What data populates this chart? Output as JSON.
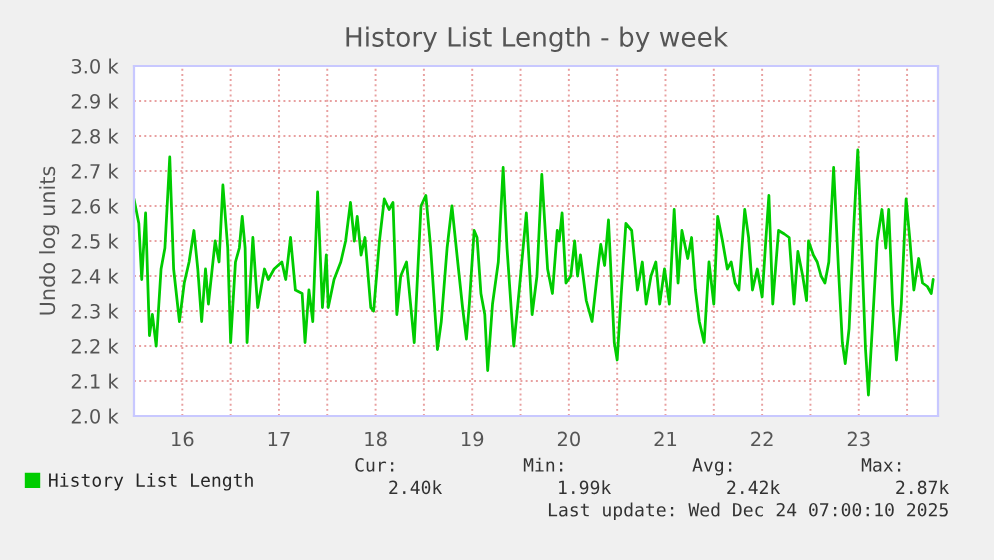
{
  "chart_data": {
    "type": "line",
    "title": "History List Length - by week",
    "ylabel": "Undo log units",
    "x": [
      16.0,
      16.05,
      16.08,
      16.12,
      16.16,
      16.19,
      16.23,
      16.28,
      16.32,
      16.37,
      16.41,
      16.47,
      16.52,
      16.57,
      16.62,
      16.66,
      16.7,
      16.74,
      16.77,
      16.84,
      16.88,
      16.92,
      16.97,
      17.0,
      17.05,
      17.09,
      17.12,
      17.15,
      17.17,
      17.23,
      17.28,
      17.35,
      17.39,
      17.45,
      17.53,
      17.57,
      17.62,
      17.67,
      17.74,
      17.77,
      17.81,
      17.85,
      17.9,
      17.95,
      17.99,
      18.01,
      18.07,
      18.14,
      18.19,
      18.24,
      18.28,
      18.31,
      18.35,
      18.39,
      18.45,
      18.48,
      18.54,
      18.59,
      18.64,
      18.68,
      18.72,
      18.76,
      18.82,
      18.9,
      18.97,
      19.02,
      19.07,
      19.14,
      19.18,
      19.24,
      19.29,
      19.35,
      19.4,
      19.44,
      19.47,
      19.52,
      19.55,
      19.59,
      19.63,
      19.66,
      19.71,
      19.77,
      19.82,
      19.86,
      19.93,
      19.99,
      20.06,
      20.12,
      20.17,
      20.22,
      20.28,
      20.33,
      20.38,
      20.4,
      20.43,
      20.47,
      20.52,
      20.56,
      20.59,
      20.62,
      20.68,
      20.74,
      20.8,
      20.83,
      20.87,
      20.91,
      20.97,
      21.0,
      21.04,
      21.09,
      21.15,
      21.21,
      21.26,
      21.3,
      21.35,
      21.4,
      21.44,
      21.49,
      21.54,
      21.59,
      21.63,
      21.67,
      21.73,
      21.77,
      21.81,
      21.85,
      21.9,
      21.95,
      22.0,
      22.04,
      22.09,
      22.14,
      22.18,
      22.22,
      22.26,
      22.32,
      22.36,
      22.4,
      22.45,
      22.5,
      22.54,
      22.57,
      22.61,
      22.67,
      22.73,
      22.78,
      22.83,
      22.87,
      22.92,
      22.96,
      22.98,
      23.03,
      23.07,
      23.11,
      23.15,
      23.19,
      23.24,
      23.29,
      23.33,
      23.36,
      23.4,
      23.45,
      23.49,
      23.53,
      23.57,
      23.6,
      23.64,
      23.69,
      23.74,
      23.78,
      23.81,
      23.85,
      23.89,
      23.94,
      23.99,
      24.03,
      24.07,
      24.12,
      24.16,
      24.21,
      24.25,
      24.27
    ],
    "series": [
      {
        "name": "History List Length",
        "color": "#00cc00",
        "values": [
          2620,
          2550,
          2390,
          2580,
          2230,
          2290,
          2200,
          2420,
          2480,
          2740,
          2420,
          2270,
          2380,
          2440,
          2530,
          2420,
          2270,
          2420,
          2320,
          2500,
          2440,
          2660,
          2480,
          2210,
          2440,
          2480,
          2570,
          2480,
          2210,
          2510,
          2310,
          2420,
          2390,
          2420,
          2440,
          2390,
          2510,
          2360,
          2350,
          2210,
          2360,
          2270,
          2640,
          2310,
          2460,
          2310,
          2390,
          2440,
          2500,
          2610,
          2500,
          2570,
          2460,
          2510,
          2310,
          2300,
          2500,
          2620,
          2590,
          2610,
          2290,
          2400,
          2440,
          2210,
          2600,
          2630,
          2480,
          2190,
          2270,
          2480,
          2600,
          2440,
          2310,
          2220,
          2320,
          2530,
          2510,
          2350,
          2290,
          2130,
          2320,
          2440,
          2710,
          2480,
          2200,
          2370,
          2580,
          2290,
          2400,
          2690,
          2420,
          2350,
          2530,
          2500,
          2580,
          2380,
          2400,
          2500,
          2400,
          2460,
          2330,
          2270,
          2420,
          2490,
          2430,
          2560,
          2210,
          2160,
          2340,
          2550,
          2530,
          2360,
          2440,
          2320,
          2400,
          2440,
          2320,
          2420,
          2320,
          2590,
          2380,
          2530,
          2450,
          2510,
          2360,
          2270,
          2210,
          2440,
          2320,
          2570,
          2500,
          2420,
          2440,
          2380,
          2360,
          2590,
          2510,
          2360,
          2420,
          2340,
          2510,
          2630,
          2320,
          2530,
          2520,
          2510,
          2320,
          2470,
          2400,
          2330,
          2500,
          2460,
          2440,
          2400,
          2380,
          2440,
          2710,
          2420,
          2210,
          2150,
          2250,
          2550,
          2760,
          2480,
          2190,
          2060,
          2250,
          2500,
          2590,
          2480,
          2590,
          2320,
          2160,
          2320,
          2620,
          2500,
          2360,
          2450,
          2380,
          2370,
          2350,
          2390
        ]
      }
    ],
    "xlim": [
      16.0,
      24.32
    ],
    "xticks": [
      {
        "value": 16.5,
        "label": "16"
      },
      {
        "value": 17,
        "label": null
      },
      {
        "value": 17.5,
        "label": "17"
      },
      {
        "value": 18,
        "label": null
      },
      {
        "value": 18.5,
        "label": "18"
      },
      {
        "value": 19,
        "label": null
      },
      {
        "value": 19.5,
        "label": "19"
      },
      {
        "value": 20,
        "label": null
      },
      {
        "value": 20.5,
        "label": "20"
      },
      {
        "value": 21,
        "label": null
      },
      {
        "value": 21.5,
        "label": "21"
      },
      {
        "value": 22,
        "label": null
      },
      {
        "value": 22.5,
        "label": "22"
      },
      {
        "value": 23,
        "label": null
      },
      {
        "value": 23.5,
        "label": "23"
      },
      {
        "value": 24,
        "label": null
      }
    ],
    "ylim": [
      2000,
      3000
    ],
    "yticks": [
      {
        "value": 2000,
        "label": "2.0 k"
      },
      {
        "value": 2100,
        "label": "2.1 k"
      },
      {
        "value": 2200,
        "label": "2.2 k"
      },
      {
        "value": 2300,
        "label": "2.3 k"
      },
      {
        "value": 2400,
        "label": "2.4 k"
      },
      {
        "value": 2500,
        "label": "2.5 k"
      },
      {
        "value": 2600,
        "label": "2.6 k"
      },
      {
        "value": 2700,
        "label": "2.7 k"
      },
      {
        "value": 2800,
        "label": "2.8 k"
      },
      {
        "value": 2900,
        "label": "2.9 k"
      },
      {
        "value": 3000,
        "label": "3.0 k"
      }
    ],
    "grid": true,
    "legend": "bottom left",
    "marker": "none",
    "line_style": "solid",
    "annotations": [
      "Cur:",
      "Min:",
      "Avg:",
      "Max:",
      "2.40k",
      "1.99k",
      "2.42k",
      "2.87k",
      "Last update: Wed Dec 24 07:00:10 2025"
    ]
  }
}
